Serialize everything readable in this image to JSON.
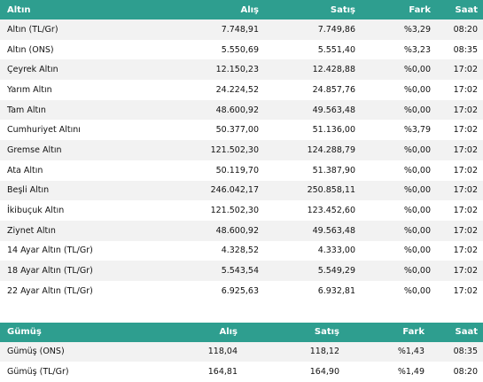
{
  "gold": {
    "headers": {
      "name": "Altın",
      "buy": "Alış",
      "sell": "Satış",
      "change": "Fark",
      "time": "Saat"
    },
    "rows": [
      {
        "name": "Altın (TL/Gr)",
        "buy": "7.748,91",
        "sell": "7.749,86",
        "change": "%3,29",
        "time": "08:20"
      },
      {
        "name": "Altın (ONS)",
        "buy": "5.550,69",
        "sell": "5.551,40",
        "change": "%3,23",
        "time": "08:35"
      },
      {
        "name": "Çeyrek Altın",
        "buy": "12.150,23",
        "sell": "12.428,88",
        "change": "%0,00",
        "time": "17:02"
      },
      {
        "name": "Yarım Altın",
        "buy": "24.224,52",
        "sell": "24.857,76",
        "change": "%0,00",
        "time": "17:02"
      },
      {
        "name": "Tam Altın",
        "buy": "48.600,92",
        "sell": "49.563,48",
        "change": "%0,00",
        "time": "17:02"
      },
      {
        "name": "Cumhuriyet Altını",
        "buy": "50.377,00",
        "sell": "51.136,00",
        "change": "%3,79",
        "time": "17:02"
      },
      {
        "name": "Gremse Altın",
        "buy": "121.502,30",
        "sell": "124.288,79",
        "change": "%0,00",
        "time": "17:02"
      },
      {
        "name": "Ata Altın",
        "buy": "50.119,70",
        "sell": "51.387,90",
        "change": "%0,00",
        "time": "17:02"
      },
      {
        "name": "Beşli Altın",
        "buy": "246.042,17",
        "sell": "250.858,11",
        "change": "%0,00",
        "time": "17:02"
      },
      {
        "name": "İkibuçuk Altın",
        "buy": "121.502,30",
        "sell": "123.452,60",
        "change": "%0,00",
        "time": "17:02"
      },
      {
        "name": "Ziynet Altın",
        "buy": "48.600,92",
        "sell": "49.563,48",
        "change": "%0,00",
        "time": "17:02"
      },
      {
        "name": "14 Ayar Altın (TL/Gr)",
        "buy": "4.328,52",
        "sell": "4.333,00",
        "change": "%0,00",
        "time": "17:02"
      },
      {
        "name": "18 Ayar Altın (TL/Gr)",
        "buy": "5.543,54",
        "sell": "5.549,29",
        "change": "%0,00",
        "time": "17:02"
      },
      {
        "name": "22 Ayar Altın (TL/Gr)",
        "buy": "6.925,63",
        "sell": "6.932,81",
        "change": "%0,00",
        "time": "17:02"
      }
    ]
  },
  "silver": {
    "headers": {
      "name": "Gümüş",
      "buy": "Alış",
      "sell": "Satış",
      "change": "Fark",
      "time": "Saat"
    },
    "rows": [
      {
        "name": "Gümüş (ONS)",
        "buy": "118,04",
        "sell": "118,12",
        "change": "%1,43",
        "time": "08:35"
      },
      {
        "name": "Gümüş (TL/Gr)",
        "buy": "164,81",
        "sell": "164,90",
        "change": "%1,49",
        "time": "08:20"
      }
    ]
  },
  "colors": {
    "header_bg": "#2e9e8f",
    "header_text": "#ffffff",
    "stripe": "#f2f2f2"
  }
}
